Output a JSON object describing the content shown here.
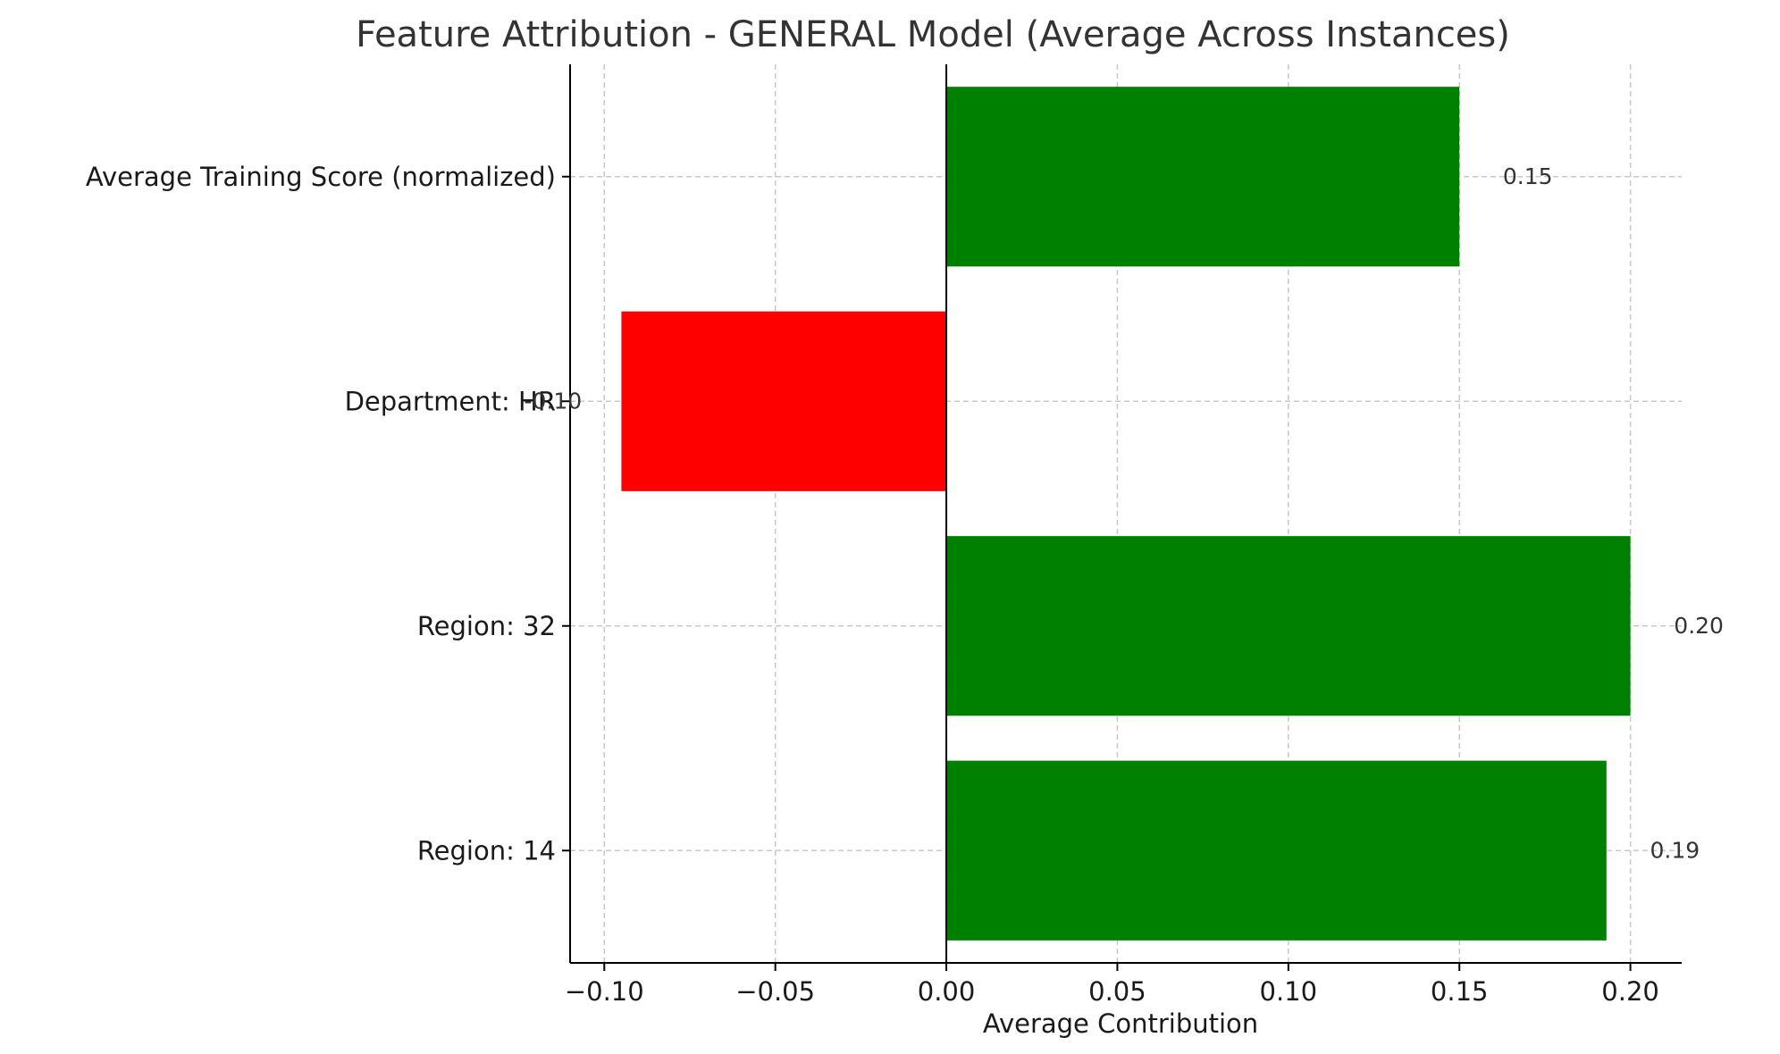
{
  "chart_data": {
    "type": "bar",
    "orientation": "horizontal",
    "title": "Feature Attribution - GENERAL Model (Average Across Instances)",
    "xlabel": "Average Contribution",
    "ylabel": "",
    "xlim": [
      -0.11,
      0.215
    ],
    "xticks": [
      -0.1,
      -0.05,
      0.0,
      0.05,
      0.1,
      0.15,
      0.2
    ],
    "xtick_labels": [
      "−0.10",
      "−0.05",
      "0.00",
      "0.05",
      "0.10",
      "0.15",
      "0.20"
    ],
    "grid": true,
    "categories": [
      "Average Training Score (normalized)",
      "Department: HR",
      "Region: 32",
      "Region: 14"
    ],
    "values": [
      0.15,
      -0.095,
      0.2,
      0.193
    ],
    "value_labels": [
      "0.15",
      "-0.10",
      "0.20",
      "0.19"
    ],
    "colors": {
      "positive": "#008000",
      "negative": "#ff0000"
    }
  }
}
